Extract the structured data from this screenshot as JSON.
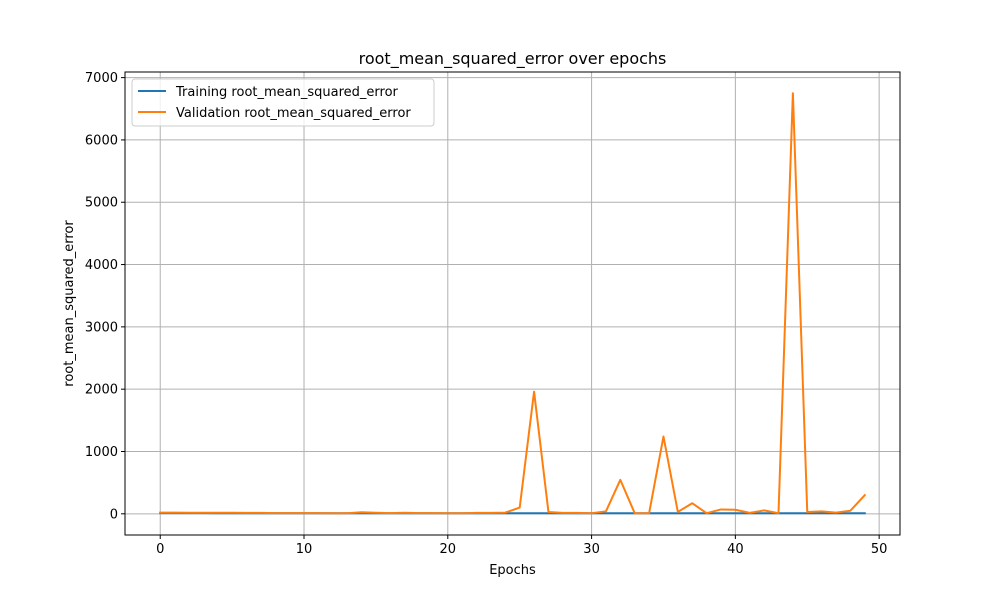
{
  "chart_data": {
    "type": "line",
    "title": "root_mean_squared_error over epochs",
    "xlabel": "Epochs",
    "ylabel": "root_mean_squared_error",
    "xlim": [
      -2.45,
      51.45
    ],
    "ylim": [
      -340,
      7090
    ],
    "xticks": [
      0,
      10,
      20,
      30,
      40,
      50
    ],
    "yticks": [
      0,
      1000,
      2000,
      3000,
      4000,
      5000,
      6000,
      7000
    ],
    "grid": true,
    "legend_position": "upper-left",
    "x": [
      0,
      1,
      2,
      3,
      4,
      5,
      6,
      7,
      8,
      9,
      10,
      11,
      12,
      13,
      14,
      15,
      16,
      17,
      18,
      19,
      20,
      21,
      22,
      23,
      24,
      25,
      26,
      27,
      28,
      29,
      30,
      31,
      32,
      33,
      34,
      35,
      36,
      37,
      38,
      39,
      40,
      41,
      42,
      43,
      44,
      45,
      46,
      47,
      48,
      49
    ],
    "series": [
      {
        "name": "Training root_mean_squared_error",
        "color": "#1f77b4",
        "values": [
          12,
          11,
          11,
          11,
          10,
          10,
          10,
          10,
          10,
          10,
          10,
          10,
          10,
          10,
          10,
          10,
          10,
          10,
          10,
          10,
          10,
          10,
          10,
          10,
          10,
          10,
          10,
          10,
          10,
          10,
          10,
          10,
          10,
          10,
          10,
          10,
          10,
          10,
          10,
          10,
          10,
          10,
          10,
          10,
          10,
          10,
          10,
          10,
          10,
          10
        ]
      },
      {
        "name": "Validation root_mean_squared_error",
        "color": "#ff7f0e",
        "values": [
          20,
          20,
          18,
          18,
          17,
          17,
          15,
          15,
          12,
          12,
          12,
          12,
          10,
          10,
          25,
          18,
          12,
          18,
          12,
          12,
          10,
          10,
          15,
          15,
          20,
          100,
          1960,
          30,
          15,
          15,
          10,
          40,
          545,
          10,
          10,
          1240,
          30,
          170,
          10,
          70,
          65,
          15,
          55,
          10,
          6750,
          30,
          40,
          20,
          50,
          300
        ]
      }
    ]
  }
}
